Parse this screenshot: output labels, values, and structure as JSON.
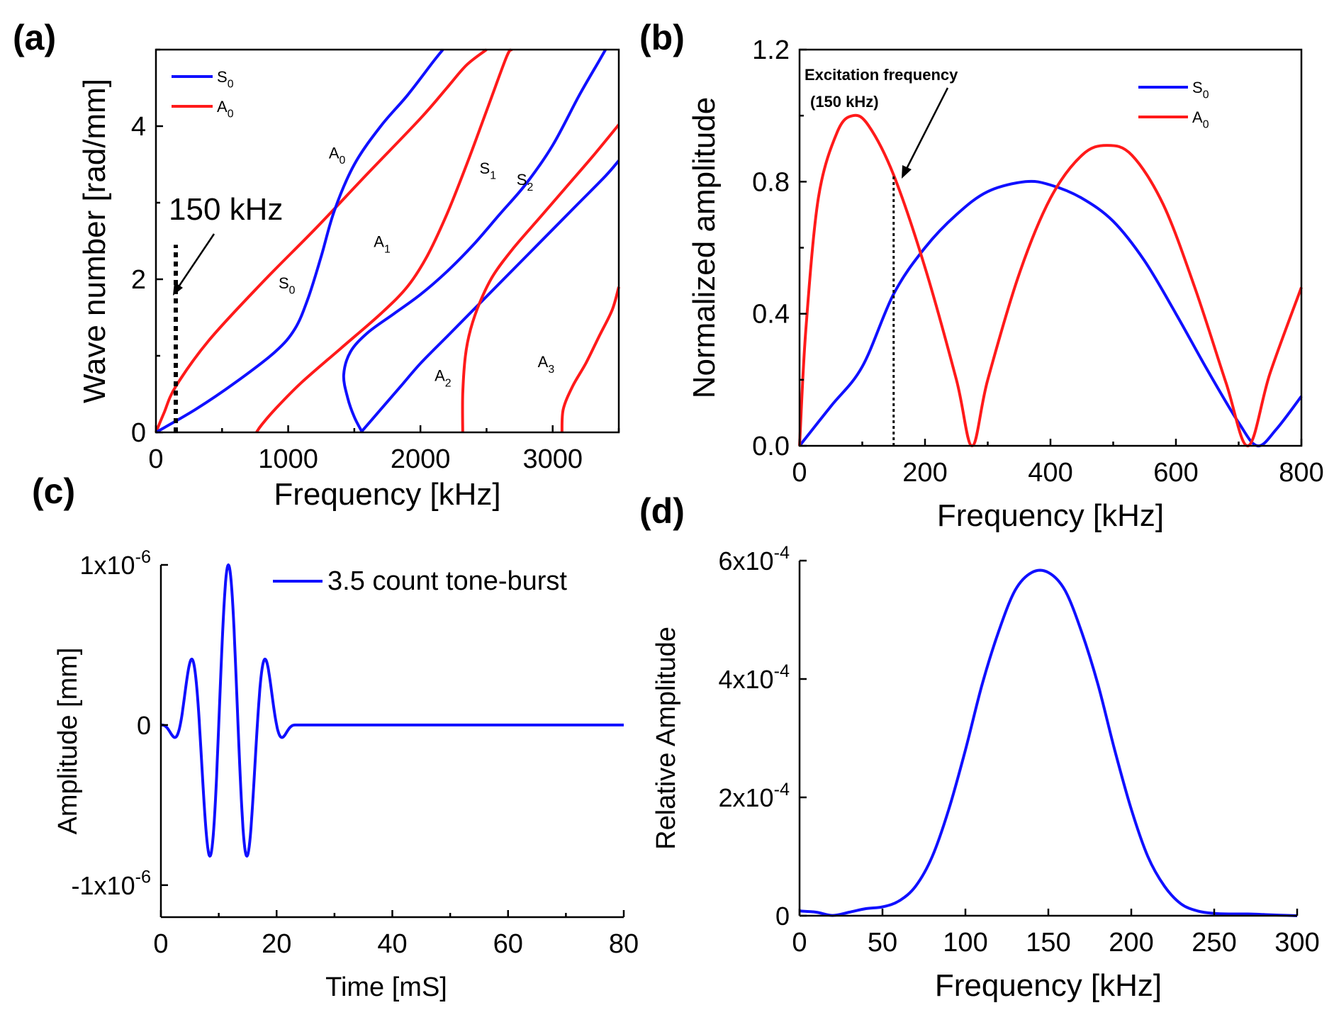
{
  "figure": {
    "colors": {
      "s0": "#1010ff",
      "a0": "#ff1a1a",
      "axis": "#000000"
    }
  },
  "chart_data": [
    {
      "panel": "(a)",
      "type": "line",
      "xlabel": "Frequency [kHz]",
      "ylabel": "Wave number [rad/mm]",
      "xlim": [
        0,
        3500
      ],
      "ylim": [
        0,
        5
      ],
      "xticks": [
        "0",
        "1000",
        "2000",
        "3000"
      ],
      "yticks": [
        "0",
        "2",
        "4"
      ],
      "legend": [
        {
          "main": "S",
          "sub": "0",
          "color": "#1010ff"
        },
        {
          "main": "A",
          "sub": "0",
          "color": "#ff1a1a"
        }
      ],
      "marker": {
        "label": "150 kHz",
        "x": 150,
        "y_top": 2.45
      },
      "curve_labels": [
        {
          "main": "A",
          "sub": "0",
          "x": 1370,
          "y": 3.58
        },
        {
          "main": "S",
          "sub": "0",
          "x": 990,
          "y": 1.88
        },
        {
          "main": "A",
          "sub": "1",
          "x": 1710,
          "y": 2.42
        },
        {
          "main": "S",
          "sub": "1",
          "x": 2510,
          "y": 3.38
        },
        {
          "main": "S",
          "sub": "2",
          "x": 2790,
          "y": 3.23
        },
        {
          "main": "A",
          "sub": "2",
          "x": 2170,
          "y": 0.67
        },
        {
          "main": "A",
          "sub": "3",
          "x": 2950,
          "y": 0.85
        }
      ],
      "series": [
        {
          "name": "A0",
          "color": "#ff1a1a",
          "points": [
            [
              0,
              0
            ],
            [
              60,
              0.25
            ],
            [
              150,
              0.6
            ],
            [
              400,
              1.2
            ],
            [
              800,
              1.95
            ],
            [
              1200,
              2.65
            ],
            [
              1600,
              3.38
            ],
            [
              2000,
              4.1
            ],
            [
              2200,
              4.5
            ],
            [
              2350,
              4.8
            ],
            [
              2500,
              5.0
            ]
          ]
        },
        {
          "name": "S0",
          "color": "#1010ff",
          "points": [
            [
              0,
              0
            ],
            [
              300,
              0.3
            ],
            [
              600,
              0.65
            ],
            [
              900,
              1.05
            ],
            [
              1050,
              1.35
            ],
            [
              1150,
              1.75
            ],
            [
              1250,
              2.3
            ],
            [
              1350,
              2.9
            ],
            [
              1500,
              3.5
            ],
            [
              1700,
              4.0
            ],
            [
              1900,
              4.4
            ],
            [
              2100,
              4.85
            ],
            [
              2170,
              5.0
            ]
          ]
        },
        {
          "name": "A1",
          "color": "#ff1a1a",
          "points": [
            [
              760,
              0
            ],
            [
              800,
              0.1
            ],
            [
              900,
              0.3
            ],
            [
              1100,
              0.65
            ],
            [
              1400,
              1.1
            ],
            [
              1700,
              1.55
            ],
            [
              1900,
              1.9
            ],
            [
              2050,
              2.3
            ],
            [
              2200,
              2.85
            ],
            [
              2350,
              3.5
            ],
            [
              2500,
              4.2
            ],
            [
              2650,
              4.9
            ],
            [
              2690,
              5.0
            ]
          ]
        },
        {
          "name": "S1",
          "color": "#1010ff",
          "points": [
            [
              1560,
              0
            ],
            [
              1500,
              0.2
            ],
            [
              1450,
              0.45
            ],
            [
              1420,
              0.75
            ],
            [
              1470,
              1.05
            ],
            [
              1600,
              1.3
            ],
            [
              1800,
              1.55
            ],
            [
              2000,
              1.8
            ],
            [
              2200,
              2.1
            ],
            [
              2400,
              2.45
            ],
            [
              2600,
              2.85
            ],
            [
              2800,
              3.25
            ],
            [
              3000,
              3.75
            ],
            [
              3200,
              4.4
            ],
            [
              3350,
              4.85
            ],
            [
              3400,
              5.0
            ]
          ]
        },
        {
          "name": "S2",
          "color": "#1010ff",
          "points": [
            [
              1550,
              0
            ],
            [
              1700,
              0.3
            ],
            [
              1850,
              0.6
            ],
            [
              2000,
              0.9
            ],
            [
              2200,
              1.25
            ],
            [
              2400,
              1.6
            ],
            [
              2600,
              1.95
            ],
            [
              2800,
              2.3
            ],
            [
              3000,
              2.65
            ],
            [
              3200,
              3.0
            ],
            [
              3400,
              3.35
            ],
            [
              3500,
              3.55
            ]
          ]
        },
        {
          "name": "A2",
          "color": "#ff1a1a",
          "points": [
            [
              2320,
              0
            ],
            [
              2320,
              0.5
            ],
            [
              2340,
              1.0
            ],
            [
              2380,
              1.35
            ],
            [
              2450,
              1.7
            ],
            [
              2550,
              2.05
            ],
            [
              2700,
              2.4
            ],
            [
              2900,
              2.8
            ],
            [
              3100,
              3.2
            ],
            [
              3300,
              3.6
            ],
            [
              3500,
              4.02
            ]
          ]
        },
        {
          "name": "A3",
          "color": "#ff1a1a",
          "points": [
            [
              3070,
              0
            ],
            [
              3080,
              0.3
            ],
            [
              3150,
              0.6
            ],
            [
              3250,
              0.9
            ],
            [
              3350,
              1.25
            ],
            [
              3450,
              1.6
            ],
            [
              3500,
              1.9
            ]
          ]
        }
      ]
    },
    {
      "panel": "(b)",
      "type": "line",
      "xlabel": "Frequency [kHz]",
      "ylabel": "Normalized amplitude",
      "xlim": [
        0,
        800
      ],
      "ylim": [
        0,
        1.2
      ],
      "xticks": [
        "0",
        "200",
        "400",
        "600",
        "800"
      ],
      "yticks": [
        "0.0",
        "0.4",
        "0.8",
        "1.2"
      ],
      "legend": [
        {
          "main": "S",
          "sub": "0",
          "color": "#1010ff"
        },
        {
          "main": "A",
          "sub": "0",
          "color": "#ff1a1a"
        }
      ],
      "annotation": {
        "line1": "Excitation frequency",
        "line2": "(150 kHz)",
        "x": 150,
        "y": 0.82
      },
      "series": [
        {
          "name": "S0",
          "color": "#1010ff",
          "points": [
            [
              0,
              0
            ],
            [
              50,
              0.12
            ],
            [
              100,
              0.24
            ],
            [
              150,
              0.46
            ],
            [
              200,
              0.6
            ],
            [
              250,
              0.7
            ],
            [
              300,
              0.77
            ],
            [
              360,
              0.8
            ],
            [
              400,
              0.79
            ],
            [
              450,
              0.75
            ],
            [
              500,
              0.68
            ],
            [
              550,
              0.56
            ],
            [
              600,
              0.4
            ],
            [
              650,
              0.23
            ],
            [
              700,
              0.07
            ],
            [
              730,
              0
            ],
            [
              760,
              0.05
            ],
            [
              800,
              0.15
            ]
          ]
        },
        {
          "name": "A0",
          "color": "#ff1a1a",
          "points": [
            [
              0,
              0
            ],
            [
              10,
              0.35
            ],
            [
              30,
              0.75
            ],
            [
              60,
              0.95
            ],
            [
              85,
              1.0
            ],
            [
              110,
              0.97
            ],
            [
              150,
              0.82
            ],
            [
              200,
              0.54
            ],
            [
              250,
              0.2
            ],
            [
              275,
              0
            ],
            [
              300,
              0.2
            ],
            [
              350,
              0.52
            ],
            [
              400,
              0.75
            ],
            [
              450,
              0.88
            ],
            [
              490,
              0.91
            ],
            [
              530,
              0.88
            ],
            [
              580,
              0.73
            ],
            [
              630,
              0.48
            ],
            [
              680,
              0.19
            ],
            [
              715,
              0
            ],
            [
              750,
              0.22
            ],
            [
              800,
              0.48
            ]
          ]
        }
      ]
    },
    {
      "panel": "(c)",
      "type": "line",
      "xlabel": "Time [mS]",
      "ylabel": "Amplitude [mm]",
      "xlim": [
        0,
        80
      ],
      "ylim": [
        -1.2e-06,
        1e-06
      ],
      "xticks": [
        "0",
        "20",
        "40",
        "60",
        "80"
      ],
      "yticks": [
        {
          "base": "1x10",
          "exp": "-6",
          "value": 1e-06
        },
        {
          "base": "0",
          "exp": "",
          "value": 0
        },
        {
          "base": "-1x10",
          "exp": "-6",
          "value": -1e-06
        }
      ],
      "legend": [
        {
          "label": "3.5 count tone-burst",
          "color": "#1010ff"
        }
      ],
      "series": [
        {
          "name": "3.5 count tone-burst",
          "color": "#1010ff",
          "cycles": 3.5,
          "duration": 23.33,
          "peak": 1e-06,
          "end": 80
        }
      ]
    },
    {
      "panel": "(d)",
      "type": "line",
      "xlabel": "Frequency [kHz]",
      "ylabel": "Relative Amplitude",
      "xlim": [
        0,
        300
      ],
      "ylim": [
        0,
        0.0006
      ],
      "xticks": [
        "0",
        "50",
        "100",
        "150",
        "200",
        "250",
        "300"
      ],
      "yticks": [
        {
          "base": "0",
          "exp": "",
          "value": 0
        },
        {
          "base": "2x10",
          "exp": "-4",
          "value": 0.0002
        },
        {
          "base": "4x10",
          "exp": "-4",
          "value": 0.0004
        },
        {
          "base": "6x10",
          "exp": "-4",
          "value": 0.0006
        }
      ],
      "series": [
        {
          "name": "spectrum",
          "color": "#1010ff",
          "points": [
            [
              0,
              8e-06
            ],
            [
              10,
              6e-06
            ],
            [
              20,
              5e-07
            ],
            [
              30,
              6e-06
            ],
            [
              40,
              1.2e-05
            ],
            [
              50,
              1.5e-05
            ],
            [
              60,
              2.5e-05
            ],
            [
              70,
              5e-05
            ],
            [
              80,
              0.0001
            ],
            [
              90,
              0.00018
            ],
            [
              100,
              0.00028
            ],
            [
              110,
              0.00039
            ],
            [
              120,
              0.00048
            ],
            [
              130,
              0.00055
            ],
            [
              140,
              0.00058
            ],
            [
              150,
              0.00058
            ],
            [
              160,
              0.00055
            ],
            [
              170,
              0.00048
            ],
            [
              180,
              0.00039
            ],
            [
              190,
              0.00028
            ],
            [
              200,
              0.00018
            ],
            [
              210,
              0.0001
            ],
            [
              220,
              5e-05
            ],
            [
              230,
              2e-05
            ],
            [
              240,
              8e-06
            ],
            [
              250,
              4e-06
            ],
            [
              260,
              3e-06
            ],
            [
              270,
              3e-06
            ],
            [
              280,
              2e-06
            ],
            [
              290,
              1e-06
            ],
            [
              300,
              0
            ]
          ]
        }
      ]
    }
  ]
}
